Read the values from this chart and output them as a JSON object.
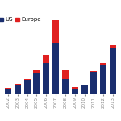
{
  "years": [
    "2002",
    "2003",
    "2004",
    "2005",
    "2006",
    "2007",
    "2008",
    "2009",
    "2010",
    "2011",
    "2012",
    "2013"
  ],
  "us_values": [
    2.0,
    3.5,
    5.0,
    7.5,
    11.0,
    18.0,
    5.5,
    2.0,
    3.5,
    8.0,
    10.5,
    16.5
  ],
  "europe_values": [
    0.3,
    0.3,
    0.3,
    1.0,
    3.0,
    8.0,
    3.0,
    0.5,
    0.0,
    0.3,
    0.5,
    0.8
  ],
  "us_color": "#1a2e6e",
  "europe_color": "#e02020",
  "background_color": "#ffffff",
  "legend_us": "US",
  "legend_europe": "Europe",
  "legend_fontsize": 5.0,
  "tick_fontsize": 4.0,
  "bar_width": 0.7
}
